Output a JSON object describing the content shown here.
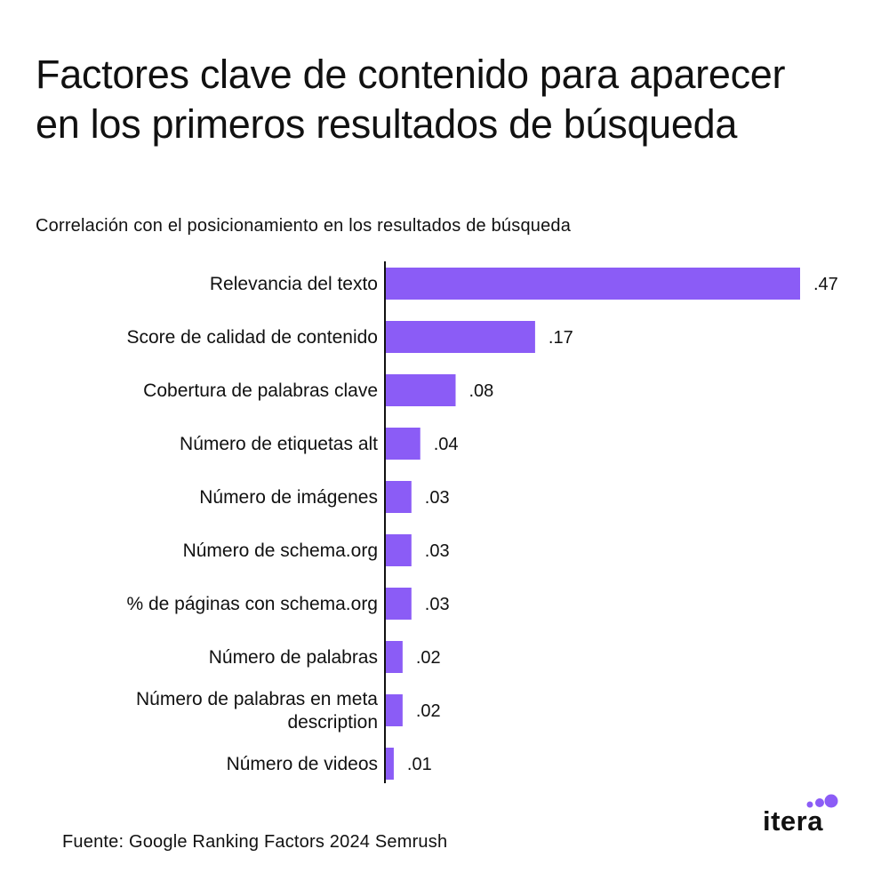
{
  "title": "Factores clave de contenido para aparecer en los primeros resultados de búsqueda",
  "subtitle": "Correlación con el posicionamiento en los resultados de búsqueda",
  "source": "Fuente:  Google Ranking Factors 2024 Semrush",
  "logo": {
    "text": "itera",
    "dot_color": "#8b5cf6"
  },
  "colors": {
    "bar": "#8b5cf6",
    "axis": "#111111",
    "text": "#111111"
  },
  "chart_data": {
    "type": "bar",
    "orientation": "horizontal",
    "categories": [
      [
        "Relevancia del texto"
      ],
      [
        "Score de calidad de contenido"
      ],
      [
        "Cobertura de palabras clave"
      ],
      [
        "Número de etiquetas alt"
      ],
      [
        "Número de imágenes"
      ],
      [
        "Número de schema.org"
      ],
      [
        "% de páginas con schema.org"
      ],
      [
        "Número de palabras"
      ],
      [
        "Número de palabras en meta",
        "description"
      ],
      [
        "Número de videos"
      ]
    ],
    "values": [
      0.47,
      0.17,
      0.08,
      0.04,
      0.03,
      0.03,
      0.03,
      0.02,
      0.02,
      0.01
    ],
    "data_labels": [
      ".47",
      ".17",
      ".08",
      ".04",
      ".03",
      ".03",
      ".03",
      ".02",
      ".02",
      ".01"
    ],
    "title": "Factores clave de contenido para aparecer en los primeros resultados de búsqueda",
    "subtitle": "Correlación con el posicionamiento en los resultados de búsqueda",
    "xlim": [
      0,
      0.47
    ],
    "grid": false,
    "legend": "none"
  }
}
